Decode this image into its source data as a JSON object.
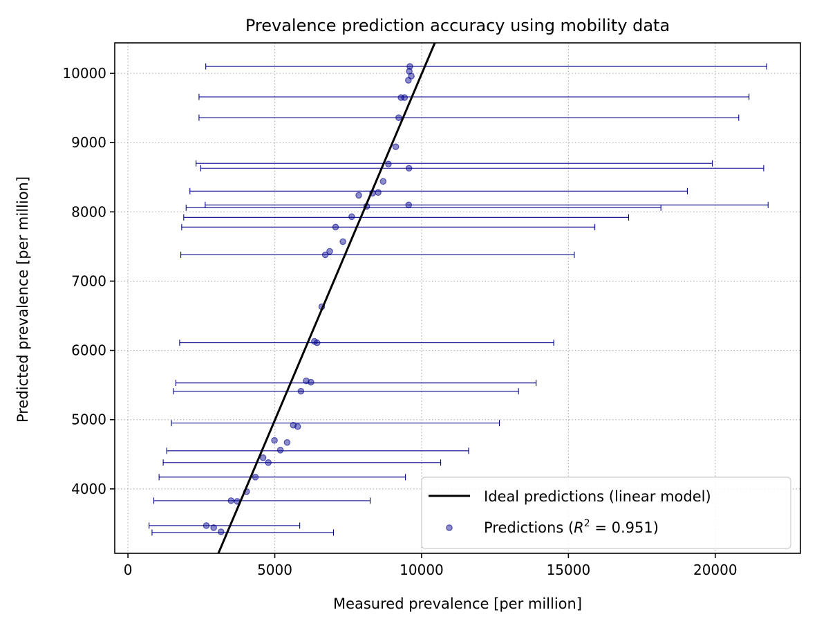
{
  "chart_data": {
    "type": "scatter",
    "title": "Prevalence prediction accuracy using mobility data",
    "xlabel": "Measured prevalence [per million]",
    "ylabel": "Predicted prevalence [per million]",
    "xlim": [
      -450,
      22900
    ],
    "ylim": [
      3070,
      10440
    ],
    "xticks": [
      0,
      5000,
      10000,
      15000,
      20000
    ],
    "yticks": [
      4000,
      5000,
      6000,
      7000,
      8000,
      9000,
      10000
    ],
    "xtick_labels": [
      "0",
      "5000",
      "10000",
      "15000",
      "20000"
    ],
    "ytick_labels": [
      "4000",
      "5000",
      "6000",
      "7000",
      "8000",
      "9000",
      "10000"
    ],
    "grid": true,
    "grid_style": "dotted",
    "legend_position": "bottom-right",
    "ideal_line": {
      "name": "Ideal predictions (linear model)",
      "color": "#000000",
      "points": [
        [
          3050,
          3040
        ],
        [
          10450,
          10440
        ]
      ]
    },
    "predictions": {
      "legend_prefix": "Predictions (",
      "legend_r": "R",
      "legend_sup": "2",
      "legend_suffix": " = 0.951)",
      "color": "#00008b",
      "points": [
        {
          "x": 9600,
          "y": 10100
        },
        {
          "x": 9580,
          "y": 10030
        },
        {
          "x": 9650,
          "y": 9960
        },
        {
          "x": 9550,
          "y": 9900
        },
        {
          "x": 9300,
          "y": 9650
        },
        {
          "x": 9420,
          "y": 9650
        },
        {
          "x": 9220,
          "y": 9360
        },
        {
          "x": 9120,
          "y": 8940
        },
        {
          "x": 8870,
          "y": 8690
        },
        {
          "x": 9570,
          "y": 8630
        },
        {
          "x": 8690,
          "y": 8440
        },
        {
          "x": 8330,
          "y": 8270
        },
        {
          "x": 8520,
          "y": 8280
        },
        {
          "x": 7860,
          "y": 8240
        },
        {
          "x": 8130,
          "y": 8080
        },
        {
          "x": 9560,
          "y": 8100
        },
        {
          "x": 7620,
          "y": 7930
        },
        {
          "x": 7070,
          "y": 7780
        },
        {
          "x": 7320,
          "y": 7570
        },
        {
          "x": 6870,
          "y": 7430
        },
        {
          "x": 6720,
          "y": 7380
        },
        {
          "x": 6600,
          "y": 6630
        },
        {
          "x": 6350,
          "y": 6130
        },
        {
          "x": 6440,
          "y": 6110
        },
        {
          "x": 6070,
          "y": 5560
        },
        {
          "x": 6230,
          "y": 5540
        },
        {
          "x": 5890,
          "y": 5410
        },
        {
          "x": 5630,
          "y": 4920
        },
        {
          "x": 5780,
          "y": 4900
        },
        {
          "x": 4990,
          "y": 4700
        },
        {
          "x": 5420,
          "y": 4670
        },
        {
          "x": 5190,
          "y": 4560
        },
        {
          "x": 4600,
          "y": 4450
        },
        {
          "x": 4780,
          "y": 4380
        },
        {
          "x": 4340,
          "y": 4170
        },
        {
          "x": 4040,
          "y": 3960
        },
        {
          "x": 3510,
          "y": 3830
        },
        {
          "x": 3720,
          "y": 3820
        },
        {
          "x": 2670,
          "y": 3470
        },
        {
          "x": 2920,
          "y": 3440
        },
        {
          "x": 3170,
          "y": 3380
        }
      ]
    },
    "error_bars": [
      {
        "y": 10100,
        "xmin": 2650,
        "xmax": 21750
      },
      {
        "y": 9660,
        "xmin": 2420,
        "xmax": 21150
      },
      {
        "y": 9360,
        "xmin": 2420,
        "xmax": 20800
      },
      {
        "y": 8700,
        "xmin": 2320,
        "xmax": 19900
      },
      {
        "y": 8630,
        "xmin": 2480,
        "xmax": 21650
      },
      {
        "y": 8300,
        "xmin": 2110,
        "xmax": 19050
      },
      {
        "y": 8100,
        "xmin": 2630,
        "xmax": 21800
      },
      {
        "y": 8060,
        "xmin": 1980,
        "xmax": 18150
      },
      {
        "y": 7920,
        "xmin": 1900,
        "xmax": 17050
      },
      {
        "y": 7780,
        "xmin": 1830,
        "xmax": 15900
      },
      {
        "y": 7380,
        "xmin": 1800,
        "xmax": 15200
      },
      {
        "y": 6110,
        "xmin": 1760,
        "xmax": 14500
      },
      {
        "y": 5530,
        "xmin": 1630,
        "xmax": 13900
      },
      {
        "y": 5410,
        "xmin": 1550,
        "xmax": 13300
      },
      {
        "y": 4950,
        "xmin": 1480,
        "xmax": 12650
      },
      {
        "y": 4550,
        "xmin": 1320,
        "xmax": 11600
      },
      {
        "y": 4380,
        "xmin": 1200,
        "xmax": 10650
      },
      {
        "y": 4170,
        "xmin": 1060,
        "xmax": 9450
      },
      {
        "y": 3830,
        "xmin": 880,
        "xmax": 8250
      },
      {
        "y": 3470,
        "xmin": 720,
        "xmax": 5850
      },
      {
        "y": 3370,
        "xmin": 820,
        "xmax": 7000
      }
    ]
  }
}
